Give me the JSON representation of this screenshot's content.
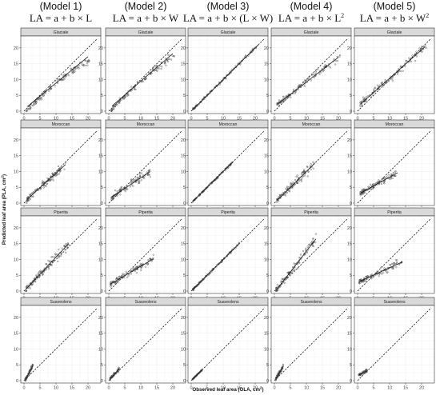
{
  "figure": {
    "columns": [
      {
        "title": "(Model 1)",
        "formula": "LA = a + b × L",
        "sup": ""
      },
      {
        "title": "(Model 2)",
        "formula": "LA = a + b × W",
        "sup": ""
      },
      {
        "title": "(Model 3)",
        "formula": "LA = a + b × (L × W)",
        "sup": ""
      },
      {
        "title": "(Model 4)",
        "formula": "LA = a + b × L",
        "sup": "2"
      },
      {
        "title": "(Model 5)",
        "formula": "LA = a + b × W",
        "sup": "2"
      }
    ],
    "rows": [
      "Glaciale",
      "Moroccan",
      "Piperita",
      "Suaveolens"
    ],
    "xlabel": "Observed leaf area (OLA, cm",
    "xlabel_sup": "2",
    "ylabel": "Predicted leaf area (PLA, cm",
    "ylabel_sup": "2"
  },
  "colors": {
    "panel_bg": "#ffffff",
    "grid": "#ebebeb",
    "strip_bg": "#d9d9d9",
    "border": "#333333",
    "points": "#555555",
    "fit_line": "#1a1a1a",
    "identity_line": "#1a1a1a"
  },
  "chart_data": {
    "type": "scatter",
    "layout": "facet grid: columns = models, rows = varieties",
    "xlim": [
      0,
      23
    ],
    "ylim": [
      0,
      23
    ],
    "xticks": [
      0,
      5,
      10,
      15,
      20
    ],
    "yticks": [
      0,
      5,
      10,
      15,
      20
    ],
    "identity_line": "dashed 1:1 line",
    "panels": [
      {
        "model": "Model 1",
        "variety": "Glaciale",
        "fit": [
          [
            1,
            1.4
          ],
          [
            20,
            17.2
          ]
        ],
        "x_range": [
          0.8,
          20.5
        ],
        "slope": 0.8,
        "curve": 0.015,
        "scatter": 0.6,
        "n": 120
      },
      {
        "model": "Model 2",
        "variety": "Glaciale",
        "fit": [
          [
            1,
            1.6
          ],
          [
            20,
            18.2
          ]
        ],
        "x_range": [
          0.8,
          20.5
        ],
        "slope": 0.87,
        "curve": 0.012,
        "scatter": 0.6,
        "n": 120
      },
      {
        "model": "Model 3",
        "variety": "Glaciale",
        "fit": [
          [
            0.5,
            0.5
          ],
          [
            21,
            21
          ]
        ],
        "x_range": [
          0.5,
          21
        ],
        "slope": 1.0,
        "curve": 0.0,
        "scatter": 0.25,
        "n": 120
      },
      {
        "model": "Model 4",
        "variety": "Glaciale",
        "fit": [
          [
            1,
            2.2
          ],
          [
            20,
            17.0
          ]
        ],
        "x_range": [
          0.8,
          20.5
        ],
        "slope": 0.78,
        "curve": 0.0,
        "scatter": 0.6,
        "n": 120
      },
      {
        "model": "Model 5",
        "variety": "Glaciale",
        "fit": [
          [
            1,
            2.3
          ],
          [
            21,
            20.3
          ]
        ],
        "x_range": [
          0.8,
          21.5
        ],
        "slope": 0.9,
        "curve": 0.0,
        "scatter": 0.7,
        "n": 120
      },
      {
        "model": "Model 1",
        "variety": "Moroccan",
        "fit": [
          [
            1,
            1.2
          ],
          [
            13,
            12.2
          ]
        ],
        "x_range": [
          0.8,
          13
        ],
        "slope": 0.92,
        "curve": 0.005,
        "scatter": 0.7,
        "n": 110
      },
      {
        "model": "Model 2",
        "variety": "Moroccan",
        "fit": [
          [
            1,
            2.0
          ],
          [
            13,
            10.0
          ]
        ],
        "x_range": [
          0.8,
          13
        ],
        "slope": 0.67,
        "curve": 0.006,
        "scatter": 0.7,
        "n": 110
      },
      {
        "model": "Model 3",
        "variety": "Moroccan",
        "fit": [
          [
            0.5,
            0.5
          ],
          [
            13,
            13
          ]
        ],
        "x_range": [
          0.5,
          13
        ],
        "slope": 1.0,
        "curve": 0.0,
        "scatter": 0.2,
        "n": 110
      },
      {
        "model": "Model 4",
        "variety": "Moroccan",
        "fit": [
          [
            1,
            1.0
          ],
          [
            12.5,
            12.5
          ]
        ],
        "x_range": [
          0.8,
          12.5
        ],
        "slope": 1.0,
        "curve": 0.0,
        "scatter": 0.8,
        "n": 110
      },
      {
        "model": "Model 5",
        "variety": "Moroccan",
        "fit": [
          [
            1,
            3.2
          ],
          [
            12.5,
            9.6
          ]
        ],
        "x_range": [
          0.8,
          12.5
        ],
        "slope": 0.56,
        "curve": 0.0,
        "scatter": 0.6,
        "n": 110
      },
      {
        "model": "Model 1",
        "variety": "Piperita",
        "fit": [
          [
            0.5,
            0.5
          ],
          [
            14,
            15.0
          ]
        ],
        "x_range": [
          0.5,
          14
        ],
        "slope": 1.07,
        "curve": 0.004,
        "scatter": 0.8,
        "n": 110
      },
      {
        "model": "Model 2",
        "variety": "Piperita",
        "fit": [
          [
            0.5,
            2.2
          ],
          [
            14,
            10.2
          ]
        ],
        "x_range": [
          0.5,
          14
        ],
        "slope": 0.6,
        "curve": 0.0,
        "scatter": 0.6,
        "n": 110
      },
      {
        "model": "Model 3",
        "variety": "Piperita",
        "fit": [
          [
            0.5,
            0.5
          ],
          [
            15,
            15
          ]
        ],
        "x_range": [
          0.5,
          15
        ],
        "slope": 1.0,
        "curve": 0.0,
        "scatter": 0.2,
        "n": 110
      },
      {
        "model": "Model 4",
        "variety": "Piperita",
        "fit": [
          [
            0.5,
            0.2
          ],
          [
            13,
            16.5
          ]
        ],
        "x_range": [
          0.5,
          13
        ],
        "slope": 1.3,
        "curve": 0.0,
        "scatter": 0.8,
        "n": 110
      },
      {
        "model": "Model 5",
        "variety": "Piperita",
        "fit": [
          [
            0.5,
            3.0
          ],
          [
            14,
            9.2
          ]
        ],
        "x_range": [
          0.5,
          14
        ],
        "slope": 0.46,
        "curve": 0.0,
        "scatter": 0.6,
        "n": 110
      },
      {
        "model": "Model 1",
        "variety": "Suaveolens",
        "fit": [
          [
            0.5,
            0.3
          ],
          [
            2.8,
            4.8
          ]
        ],
        "x_range": [
          0.4,
          2.8
        ],
        "slope": 1.9,
        "curve": 0.0,
        "scatter": 0.4,
        "n": 70
      },
      {
        "model": "Model 2",
        "variety": "Suaveolens",
        "fit": [
          [
            0.5,
            0.7
          ],
          [
            3.2,
            3.6
          ]
        ],
        "x_range": [
          0.4,
          3.2
        ],
        "slope": 1.05,
        "curve": 0.0,
        "scatter": 0.3,
        "n": 70
      },
      {
        "model": "Model 3",
        "variety": "Suaveolens",
        "fit": [
          [
            0.4,
            0.4
          ],
          [
            3.4,
            3.4
          ]
        ],
        "x_range": [
          0.4,
          3.4
        ],
        "slope": 1.0,
        "curve": 0.0,
        "scatter": 0.1,
        "n": 70
      },
      {
        "model": "Model 4",
        "variety": "Suaveolens",
        "fit": [
          [
            0.5,
            0.6
          ],
          [
            2.8,
            4.6
          ]
        ],
        "x_range": [
          0.4,
          2.8
        ],
        "slope": 1.75,
        "curve": 0.0,
        "scatter": 0.4,
        "n": 70
      },
      {
        "model": "Model 5",
        "variety": "Suaveolens",
        "fit": [
          [
            0.5,
            1.8
          ],
          [
            3.0,
            3.1
          ]
        ],
        "x_range": [
          0.4,
          3.0
        ],
        "slope": 0.5,
        "curve": 0.0,
        "scatter": 0.25,
        "n": 70
      }
    ]
  }
}
